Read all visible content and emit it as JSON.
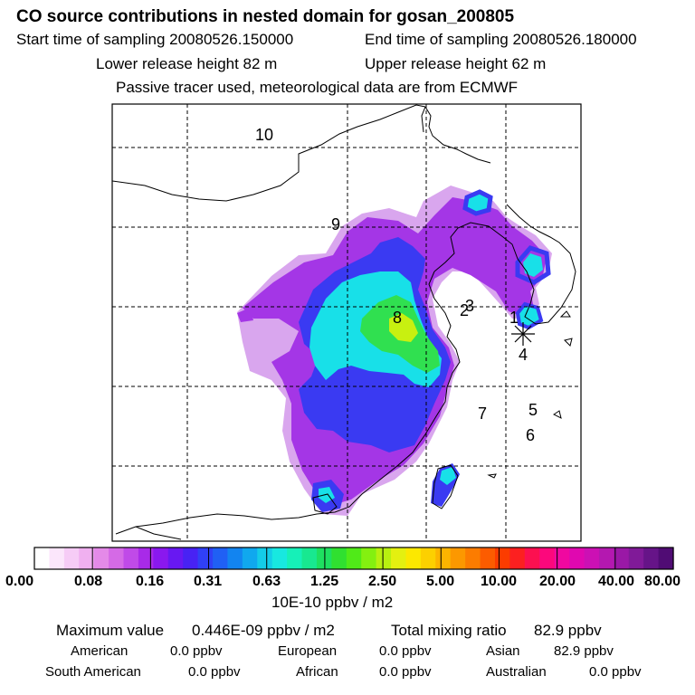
{
  "header": {
    "title": "CO  source contributions in nested domain for gosan_200805",
    "start_label": "Start time of sampling 20080526.150000",
    "end_label": "End time of sampling 20080526.180000",
    "lower_label": "Lower release height   82 m",
    "upper_label": "Upper release height   62 m",
    "note": "Passive tracer used, meteorological data are from ECMWF"
  },
  "map": {
    "region_numbers": [
      "10",
      "9",
      "8",
      "2",
      "3",
      "1",
      "4",
      "7",
      "5",
      "6"
    ],
    "receptor_marker": "asterisk"
  },
  "colorbar": {
    "tick_labels": [
      "0.00",
      "0.08",
      "0.16",
      "0.31",
      "0.63",
      "1.25",
      "2.50",
      "5.00",
      "10.00",
      "20.00",
      "40.00",
      "80.00"
    ],
    "unit": "10E-10 ppbv / m2",
    "colors": [
      "#ffffff",
      "#fbe6fb",
      "#f6ccf6",
      "#f0b0f0",
      "#e48ae8",
      "#d56ae6",
      "#c04ae8",
      "#a82ae8",
      "#8a18ee",
      "#6818f2",
      "#4822f4",
      "#3040f6",
      "#2060f4",
      "#1284f0",
      "#10a8ee",
      "#14cce8",
      "#18e8e0",
      "#16f0b8",
      "#18e890",
      "#1ee060",
      "#30e030",
      "#50ea18",
      "#84f010",
      "#b8f010",
      "#e4f010",
      "#fce800",
      "#fcd000",
      "#fcb400",
      "#fc9800",
      "#fc7c00",
      "#fc5c00",
      "#fc3c00",
      "#fc2020",
      "#fc1050",
      "#fc087c",
      "#f008a0",
      "#e008b0",
      "#cc10b4",
      "#b418b0",
      "#9a18a6",
      "#801a98",
      "#661488",
      "#500c74"
    ]
  },
  "stats": {
    "max_label": "Maximum value",
    "max_value": "0.446E-09 ppbv / m2",
    "total_label": "Total mixing ratio",
    "total_value": "82.9 ppbv",
    "contributions": [
      {
        "label": "American",
        "value": "0.0 ppbv"
      },
      {
        "label": "European",
        "value": "0.0 ppbv"
      },
      {
        "label": "Asian",
        "value": "82.9 ppbv"
      },
      {
        "label": "South American",
        "value": "0.0 ppbv"
      },
      {
        "label": "African",
        "value": "0.0 ppbv"
      },
      {
        "label": "Australian",
        "value": "0.0 ppbv"
      }
    ]
  }
}
